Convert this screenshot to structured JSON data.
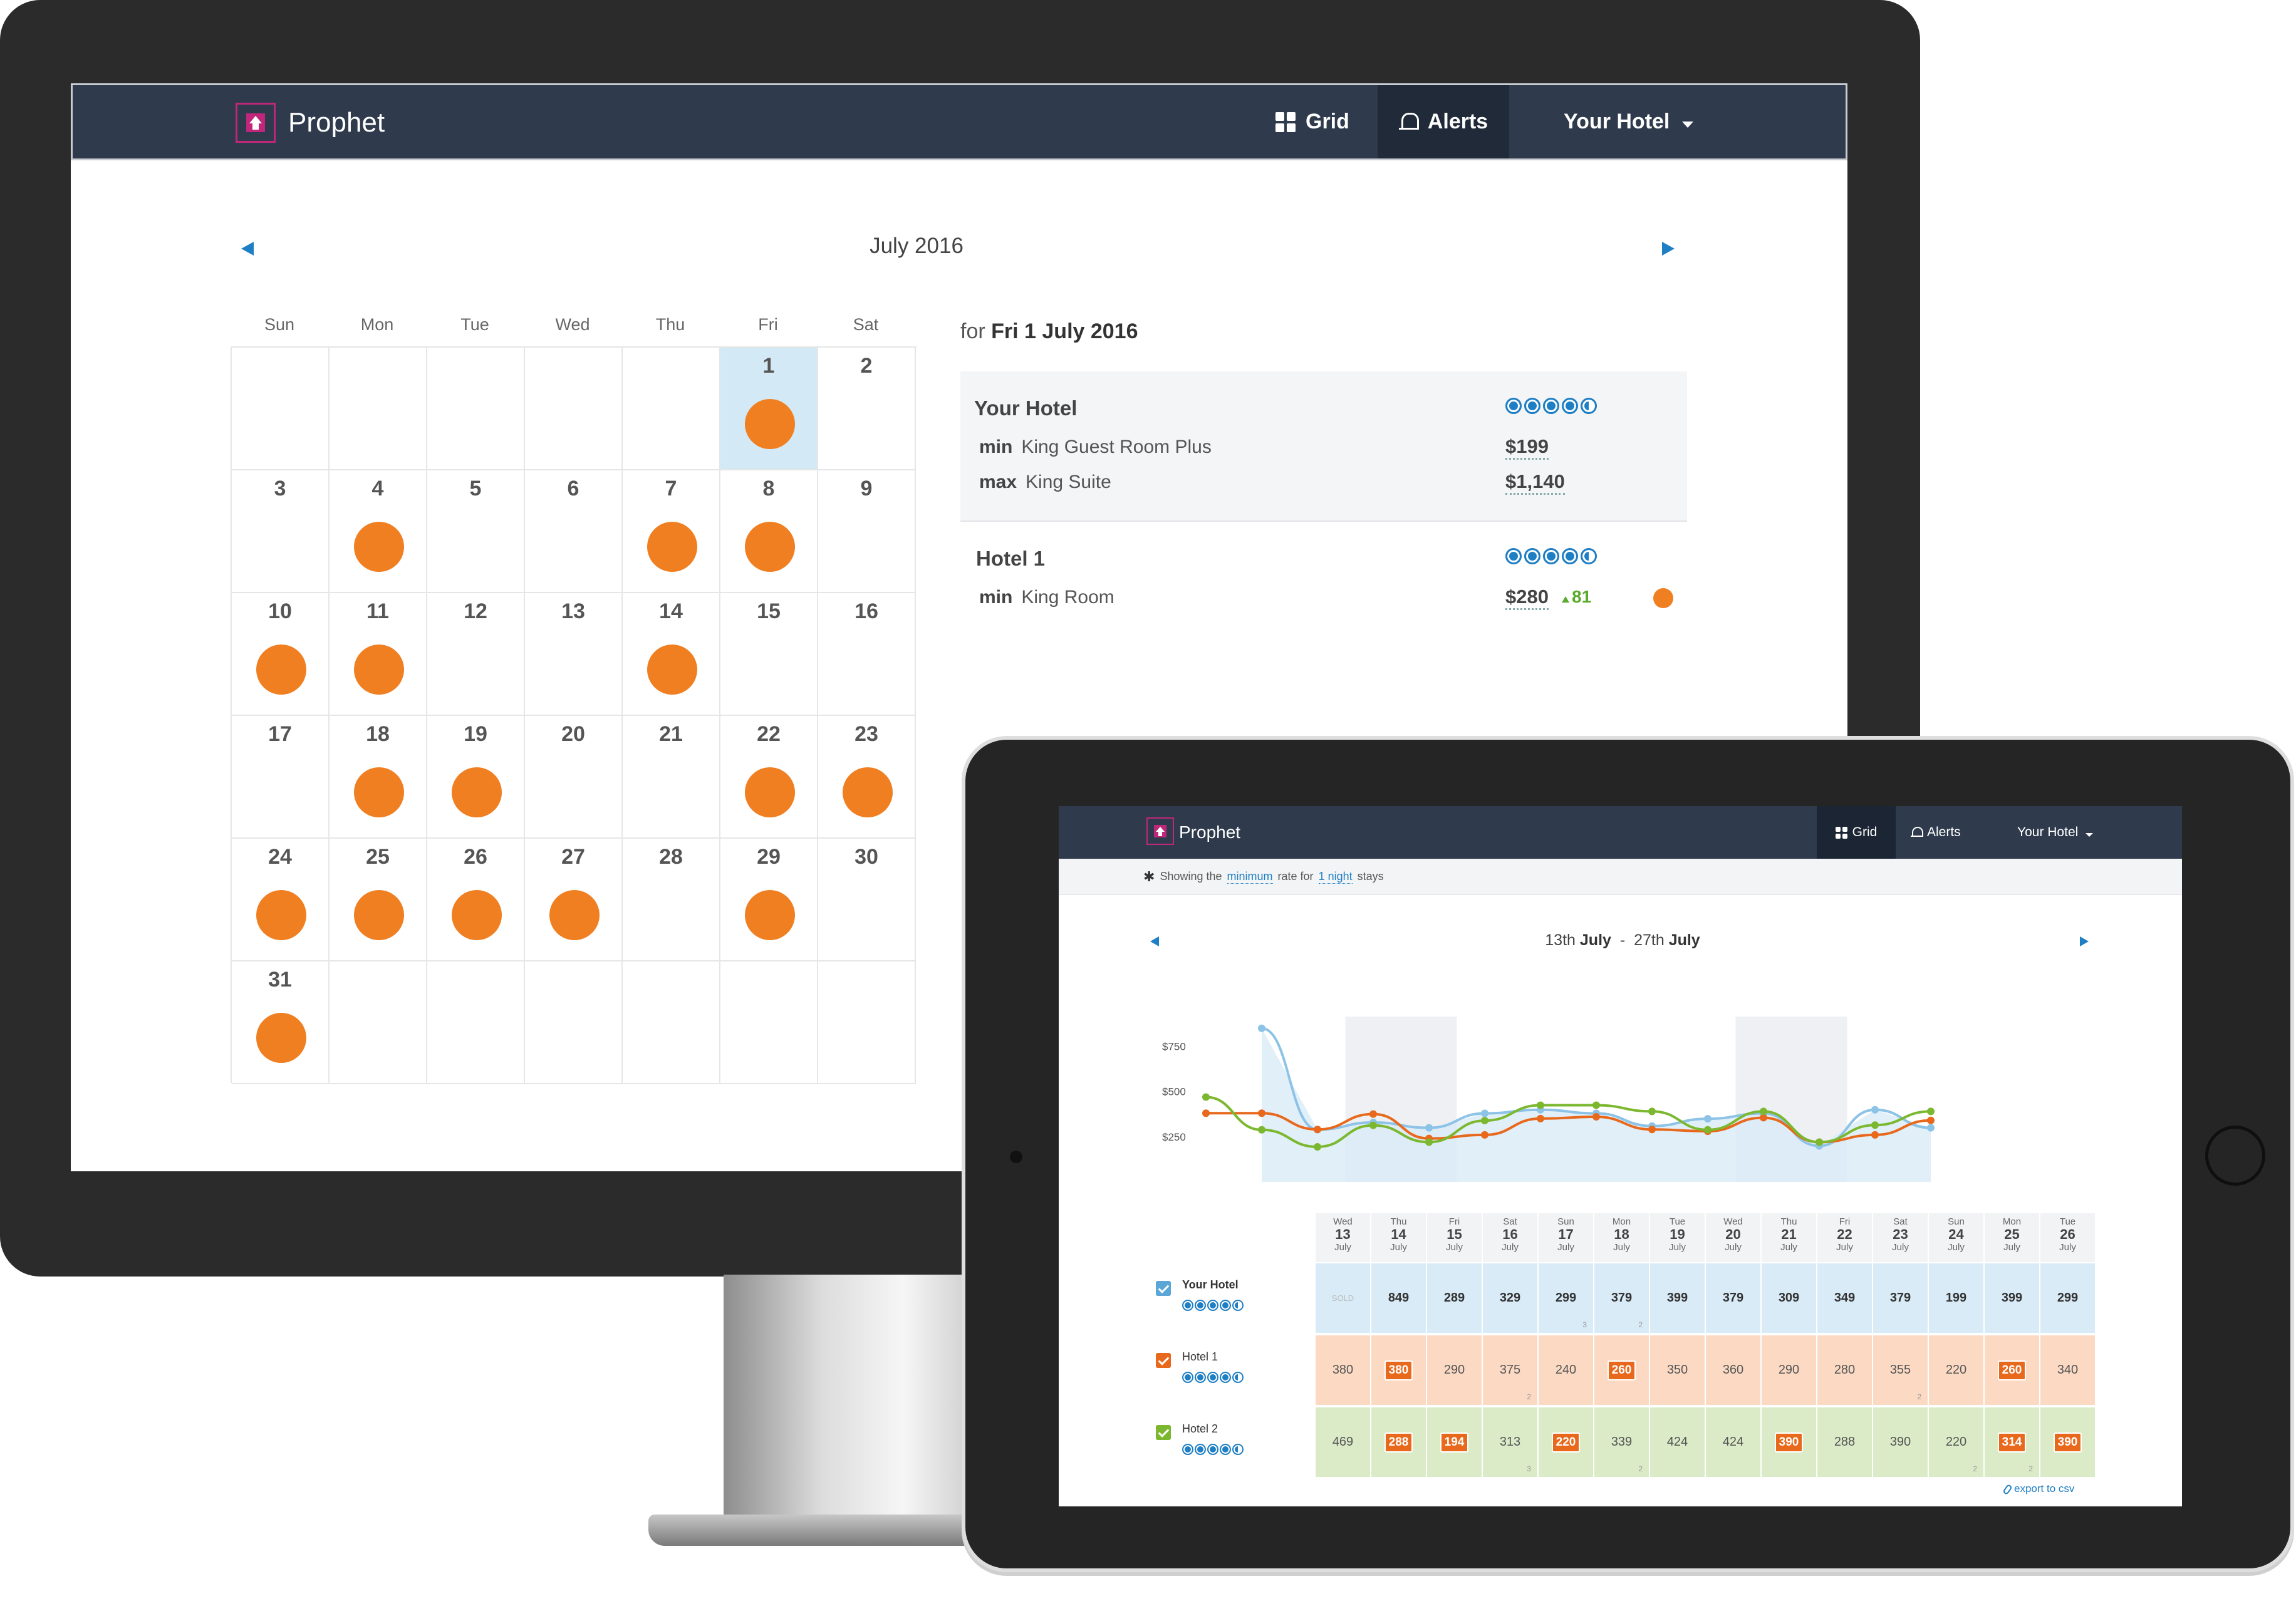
{
  "desktop": {
    "brand": "Prophet",
    "nav": {
      "grid": "Grid",
      "alerts": "Alerts",
      "hotel": "Your Hotel"
    },
    "month": "July 2016",
    "weekdays": [
      "Sun",
      "Mon",
      "Tue",
      "Wed",
      "Thu",
      "Fri",
      "Sat"
    ],
    "days": [
      {
        "d": "1",
        "dot": true,
        "selected": true
      },
      {
        "d": "2",
        "dot": false
      },
      {
        "d": "3",
        "dot": false
      },
      {
        "d": "4",
        "dot": true
      },
      {
        "d": "5",
        "dot": false
      },
      {
        "d": "6",
        "dot": false
      },
      {
        "d": "7",
        "dot": true
      },
      {
        "d": "8",
        "dot": true
      },
      {
        "d": "9",
        "dot": false
      },
      {
        "d": "10",
        "dot": true
      },
      {
        "d": "11",
        "dot": true
      },
      {
        "d": "12",
        "dot": false
      },
      {
        "d": "13",
        "dot": false
      },
      {
        "d": "14",
        "dot": true
      },
      {
        "d": "15",
        "dot": false
      },
      {
        "d": "16",
        "dot": false
      },
      {
        "d": "17",
        "dot": false
      },
      {
        "d": "18",
        "dot": true
      },
      {
        "d": "19",
        "dot": true
      },
      {
        "d": "20",
        "dot": false
      },
      {
        "d": "21",
        "dot": false
      },
      {
        "d": "22",
        "dot": true
      },
      {
        "d": "23",
        "dot": true
      },
      {
        "d": "24",
        "dot": true
      },
      {
        "d": "25",
        "dot": true
      },
      {
        "d": "26",
        "dot": true
      },
      {
        "d": "27",
        "dot": true
      },
      {
        "d": "28",
        "dot": false
      },
      {
        "d": "29",
        "dot": true
      },
      {
        "d": "30",
        "dot": false
      },
      {
        "d": "31",
        "dot": true
      }
    ],
    "first_weekday": 5,
    "detail": {
      "for_prefix": "for",
      "date": "Fri 1 July 2016",
      "your_hotel": {
        "name": "Your Hotel",
        "rating": 4.5,
        "min_label": "min",
        "min_room": "King Guest Room Plus",
        "min_price": "$199",
        "max_label": "max",
        "max_room": "King Suite",
        "max_price": "$1,140"
      },
      "hotel1": {
        "name": "Hotel 1",
        "rating": 4.5,
        "min_label": "min",
        "min_room": "King Room",
        "min_price": "$280",
        "change": "81"
      }
    }
  },
  "tablet": {
    "brand": "Prophet",
    "nav": {
      "grid": "Grid",
      "alerts": "Alerts",
      "hotel": "Your Hotel"
    },
    "info": {
      "p1": "Showing the",
      "link1": "minimum",
      "p2": "rate for",
      "link2": "1 night",
      "p3": "stays"
    },
    "range": {
      "start_day": "13th",
      "start_month": "July",
      "sep": "-",
      "end_day": "27th",
      "end_month": "July"
    },
    "export": "export to csv",
    "columns": [
      {
        "dow": "Wed",
        "d": "13",
        "m": "July"
      },
      {
        "dow": "Thu",
        "d": "14",
        "m": "July"
      },
      {
        "dow": "Fri",
        "d": "15",
        "m": "July"
      },
      {
        "dow": "Sat",
        "d": "16",
        "m": "July"
      },
      {
        "dow": "Sun",
        "d": "17",
        "m": "July"
      },
      {
        "dow": "Mon",
        "d": "18",
        "m": "July"
      },
      {
        "dow": "Tue",
        "d": "19",
        "m": "July"
      },
      {
        "dow": "Wed",
        "d": "20",
        "m": "July"
      },
      {
        "dow": "Thu",
        "d": "21",
        "m": "July"
      },
      {
        "dow": "Fri",
        "d": "22",
        "m": "July"
      },
      {
        "dow": "Sat",
        "d": "23",
        "m": "July"
      },
      {
        "dow": "Sun",
        "d": "24",
        "m": "July"
      },
      {
        "dow": "Mon",
        "d": "25",
        "m": "July"
      },
      {
        "dow": "Tue",
        "d": "26",
        "m": "July"
      }
    ],
    "rows": [
      {
        "name": "Your Hotel",
        "color": "#5aa6d6",
        "bold": true,
        "values": [
          "SOLD",
          "849",
          "289",
          "329",
          "299",
          "379",
          "399",
          "379",
          "309",
          "349",
          "379",
          "199",
          "399",
          "299"
        ],
        "badges": [],
        "nights": {
          "4": "3",
          "5": "2"
        }
      },
      {
        "name": "Hotel 1",
        "color": "#e8681c",
        "bold": false,
        "values": [
          "380",
          "380",
          "290",
          "375",
          "240",
          "260",
          "350",
          "360",
          "290",
          "280",
          "355",
          "220",
          "260",
          "340"
        ],
        "badges": [
          1,
          5,
          12
        ],
        "nights": {
          "3": "2",
          "10": "2"
        }
      },
      {
        "name": "Hotel 2",
        "color": "#7cb82f",
        "bold": false,
        "values": [
          "469",
          "288",
          "194",
          "313",
          "220",
          "339",
          "424",
          "424",
          "390",
          "288",
          "390",
          "220",
          "314",
          "390"
        ],
        "badges": [
          1,
          2,
          4,
          8,
          12,
          13
        ],
        "nights": {
          "3": "3",
          "5": "2",
          "11": "2",
          "12": "2"
        }
      }
    ]
  },
  "chart_data": {
    "type": "line",
    "x": [
      "Wed 13",
      "Thu 14",
      "Fri 15",
      "Sat 16",
      "Sun 17",
      "Mon 18",
      "Tue 19",
      "Wed 20",
      "Thu 21",
      "Fri 22",
      "Sat 23",
      "Sun 24",
      "Mon 25",
      "Tue 26"
    ],
    "y_ticks": [
      "$250",
      "$500",
      "$750"
    ],
    "ylim": [
      0,
      900
    ],
    "weekend_bands": [
      "Sat 16",
      "Sun 17",
      "Sat 23",
      "Sun 24"
    ],
    "series": [
      {
        "name": "Your Hotel",
        "color": "#8cc3e6",
        "values": [
          null,
          849,
          289,
          329,
          299,
          379,
          399,
          379,
          309,
          349,
          379,
          199,
          399,
          299
        ]
      },
      {
        "name": "Hotel 1",
        "color": "#e8681c",
        "values": [
          380,
          380,
          290,
          375,
          240,
          260,
          350,
          360,
          290,
          280,
          355,
          220,
          260,
          340
        ]
      },
      {
        "name": "Hotel 2",
        "color": "#7cb82f",
        "values": [
          469,
          288,
          194,
          313,
          220,
          339,
          424,
          424,
          390,
          288,
          390,
          220,
          314,
          390
        ]
      }
    ]
  }
}
